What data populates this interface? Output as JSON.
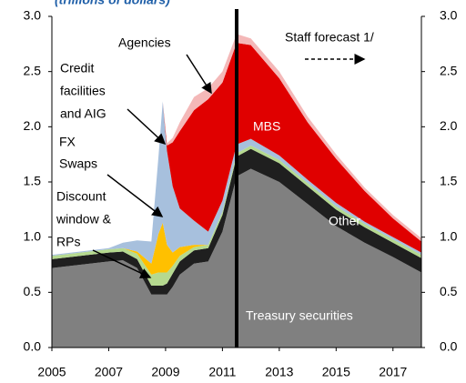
{
  "chart_data": {
    "type": "stacked-area",
    "title": "(trillions of dollars)",
    "x": [
      2005,
      2006,
      2007,
      2007.5,
      2008,
      2008.5,
      2008.75,
      2008.9,
      2009.05,
      2009.25,
      2009.5,
      2010,
      2010.5,
      2011,
      2011.5,
      2012,
      2013,
      2014,
      2015,
      2016,
      2017,
      2018
    ],
    "xlim": [
      2005,
      2018
    ],
    "xticks": [
      2005,
      2007,
      2009,
      2011,
      2013,
      2015,
      2017
    ],
    "ylim": [
      0,
      3
    ],
    "yticks": [
      {
        "value": 0,
        "label": "0.0"
      },
      {
        "value": 0.5,
        "label": "0.5"
      },
      {
        "value": 1,
        "label": "1.0"
      },
      {
        "value": 1.5,
        "label": "1.5"
      },
      {
        "value": 2,
        "label": "2.0"
      },
      {
        "value": 2.5,
        "label": "2.5"
      },
      {
        "value": 3,
        "label": "3.0"
      }
    ],
    "y2lim": [
      0,
      3
    ],
    "y2ticks": [
      {
        "value": 0,
        "label": "0.0"
      },
      {
        "value": 0.5,
        "label": "0.5"
      },
      {
        "value": 1,
        "label": "1.0"
      },
      {
        "value": 1.5,
        "label": "1.5"
      },
      {
        "value": 2,
        "label": "2.0"
      },
      {
        "value": 2.5,
        "label": "2.5"
      },
      {
        "value": 3,
        "label": "3.0"
      }
    ],
    "forecast_start": 2011.5,
    "forecast_label": "Staff forecast 1/",
    "series": [
      {
        "name": [
          "Treasury securities"
        ],
        "color": "#808080",
        "values": [
          0.72,
          0.75,
          0.78,
          0.79,
          0.72,
          0.48,
          0.48,
          0.48,
          0.48,
          0.55,
          0.66,
          0.76,
          0.78,
          1.05,
          1.55,
          1.62,
          1.5,
          1.3,
          1.1,
          0.95,
          0.82,
          0.68
        ]
      },
      {
        "name": [
          "Other"
        ],
        "color": "#1f1f1f",
        "values": [
          0.08,
          0.08,
          0.08,
          0.08,
          0.08,
          0.08,
          0.08,
          0.08,
          0.1,
          0.12,
          0.12,
          0.12,
          0.12,
          0.15,
          0.18,
          0.18,
          0.17,
          0.16,
          0.15,
          0.14,
          0.13,
          0.13
        ]
      },
      {
        "name": [
          "Discount",
          "window &",
          "RPs"
        ],
        "color": "#b5d98f",
        "values": [
          0.03,
          0.03,
          0.03,
          0.03,
          0.05,
          0.1,
          0.12,
          0.12,
          0.1,
          0.07,
          0.05,
          0.03,
          0.03,
          0.03,
          0.03,
          0.03,
          0.03,
          0.03,
          0.03,
          0.03,
          0.03,
          0.03
        ]
      },
      {
        "name": [
          "FX",
          "Swaps"
        ],
        "color": "#ffc000",
        "values": [
          0,
          0,
          0,
          0,
          0.02,
          0.1,
          0.35,
          0.45,
          0.25,
          0.12,
          0.08,
          0.02,
          0,
          0,
          0,
          0,
          0,
          0,
          0,
          0,
          0,
          0
        ]
      },
      {
        "name": [
          "Credit",
          "facilities",
          "and AIG"
        ],
        "color": "#a7c0dd",
        "values": [
          0.01,
          0.01,
          0.01,
          0.05,
          0.1,
          0.2,
          0.7,
          1.1,
          0.85,
          0.6,
          0.35,
          0.22,
          0.12,
          0.1,
          0.08,
          0.06,
          0.04,
          0.03,
          0.03,
          0.02,
          0.02,
          0.02
        ]
      },
      {
        "name": [
          "MBS"
        ],
        "color": "#e00000",
        "values": [
          0,
          0,
          0,
          0,
          0,
          0,
          0,
          0,
          0.05,
          0.4,
          0.7,
          1.0,
          1.2,
          1.07,
          0.92,
          0.85,
          0.7,
          0.52,
          0.4,
          0.28,
          0.17,
          0.1
        ]
      },
      {
        "name": [
          "Agencies"
        ],
        "color": "#f4b8b8",
        "values": [
          0,
          0,
          0,
          0,
          0,
          0,
          0,
          0,
          0.02,
          0.04,
          0.08,
          0.12,
          0.1,
          0.1,
          0.08,
          0.06,
          0.06,
          0.05,
          0.04,
          0.03,
          0.03,
          0.03
        ]
      }
    ]
  }
}
